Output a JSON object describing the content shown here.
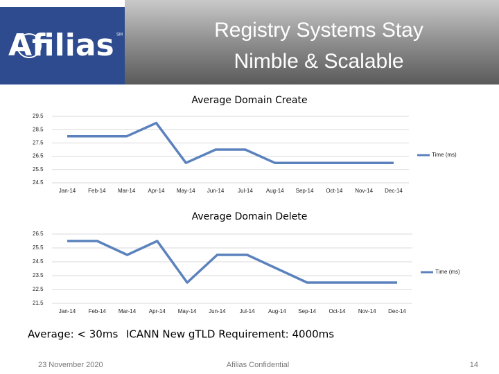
{
  "header": {
    "logo": "Afilias",
    "logo_mark": "SM",
    "title_lines": [
      "Registry Systems Stay",
      "Nimble & Scalable"
    ]
  },
  "chart_data": [
    {
      "type": "line",
      "title": "Average Domain Create",
      "categories": [
        "Jan-14",
        "Feb-14",
        "Mar-14",
        "Apr-14",
        "May-14",
        "Jun-14",
        "Jul-14",
        "Aug-14",
        "Sep-14",
        "Oct-14",
        "Nov-14",
        "Dec-14"
      ],
      "series": [
        {
          "name": "Time (ms)",
          "color": "#5b82bd",
          "values": [
            28,
            28,
            28,
            29,
            26,
            27,
            27,
            26,
            26,
            26,
            26,
            26
          ]
        }
      ],
      "ylim": [
        24.5,
        29.5
      ],
      "yticks": [
        24.5,
        25.5,
        26.5,
        27.5,
        28.5,
        29.5
      ],
      "grid": true,
      "legend": "right"
    },
    {
      "type": "line",
      "title": "Average Domain Delete",
      "categories": [
        "Jan-14",
        "Feb-14",
        "Mar-14",
        "Apr-14",
        "May-14",
        "Jun-14",
        "Jul-14",
        "Aug-14",
        "Sep-14",
        "Oct-14",
        "Nov-14",
        "Dec-14"
      ],
      "series": [
        {
          "name": "Time (ms)",
          "color": "#5b82bd",
          "values": [
            26,
            26,
            25,
            26,
            23,
            25,
            25,
            24,
            23,
            23,
            23,
            23
          ]
        }
      ],
      "ylim": [
        21.5,
        26.5
      ],
      "yticks": [
        21.5,
        22.5,
        23.5,
        24.5,
        25.5,
        26.5
      ],
      "grid": true,
      "legend": "right"
    }
  ],
  "notes": [
    "Average: < 30ms",
    "ICANN New gTLD Requirement: 4000ms"
  ],
  "footer": {
    "date": "23 November 2020",
    "label": "Afilias Confidential",
    "page": "14"
  }
}
